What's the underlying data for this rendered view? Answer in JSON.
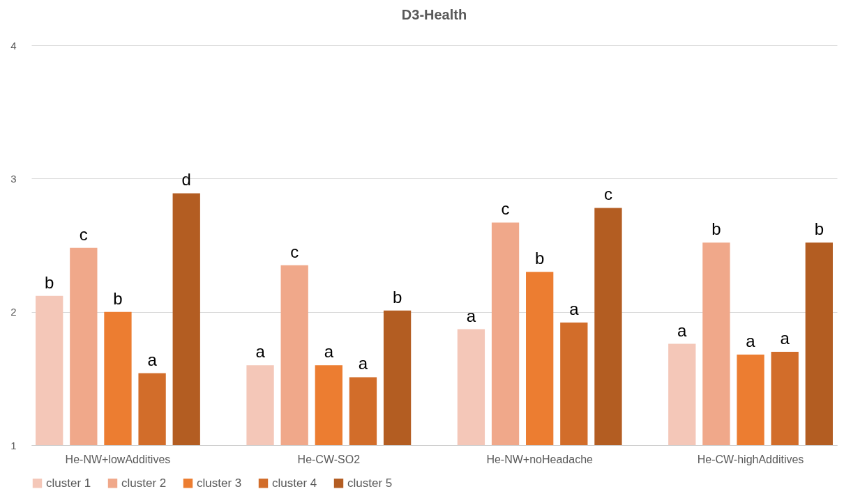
{
  "chart_data": {
    "type": "bar",
    "title": "D3-Health",
    "categories": [
      "He-NW+lowAdditives",
      "He-CW-SO2",
      "He-NW+noHeadache",
      "He-CW-highAdditives"
    ],
    "series": [
      {
        "name": "cluster 1",
        "color": "#f4c7b8",
        "values": [
          2.12,
          1.6,
          1.87,
          1.76
        ],
        "value_labels": [
          "b",
          "a",
          "a",
          "a"
        ]
      },
      {
        "name": "cluster 2",
        "color": "#f0a88a",
        "values": [
          2.48,
          2.35,
          2.67,
          2.52
        ],
        "value_labels": [
          "c",
          "c",
          "c",
          "b"
        ]
      },
      {
        "name": "cluster 3",
        "color": "#ec7d31",
        "values": [
          2.0,
          1.6,
          2.3,
          1.68
        ],
        "value_labels": [
          "b",
          "a",
          "b",
          "a"
        ]
      },
      {
        "name": "cluster 4",
        "color": "#d26d2a",
        "values": [
          1.54,
          1.51,
          1.92,
          1.7
        ],
        "value_labels": [
          "a",
          "a",
          "a",
          "a"
        ]
      },
      {
        "name": "cluster 5",
        "color": "#b35d22",
        "values": [
          2.89,
          2.01,
          2.78,
          2.52
        ],
        "value_labels": [
          "d",
          "b",
          "c",
          "b"
        ]
      }
    ],
    "ylim": [
      1,
      4
    ],
    "yticks": [
      1,
      2,
      3,
      4
    ],
    "grid": "y",
    "legend": "bottom"
  }
}
